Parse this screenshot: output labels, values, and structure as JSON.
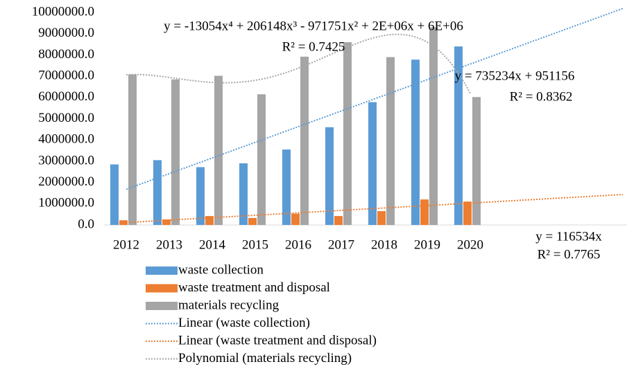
{
  "chart_data": {
    "type": "bar",
    "categories": [
      "2012",
      "2013",
      "2014",
      "2015",
      "2016",
      "2017",
      "2018",
      "2019",
      "2020"
    ],
    "series": [
      {
        "name": "waste collection",
        "color": "#5b9bd5",
        "values": [
          2850000,
          3050000,
          2720000,
          2900000,
          3550000,
          4600000,
          5780000,
          7780000,
          8400000
        ]
      },
      {
        "name": "waste treatment and disposal",
        "color": "#ed7d31",
        "values": [
          220000,
          260000,
          420000,
          330000,
          530000,
          420000,
          650000,
          1200000,
          1100000
        ]
      },
      {
        "name": "materials recycling",
        "color": "#a5a5a5",
        "values": [
          7080000,
          6850000,
          7020000,
          6150000,
          7920000,
          8600000,
          7900000,
          9300000,
          6020000
        ]
      }
    ],
    "trendlines": [
      {
        "name": "Linear (waste collection)",
        "series": 0,
        "kind": "linear",
        "color": "#5b9bd5",
        "equation": "y = 735234x + 951156",
        "r2": "R² = 0.8362"
      },
      {
        "name": "Linear (waste treatment and disposal)",
        "series": 1,
        "kind": "linear",
        "color": "#ed7d31",
        "equation": "y = 116534x",
        "r2": "R² = 0.7765"
      },
      {
        "name": "Polynomial (materials recycling)",
        "series": 2,
        "kind": "polynomial",
        "color": "#a5a5a5",
        "equation": "y = -13054x⁴ + 206148x³ - 971751x² + 2E+06x + 6E+06",
        "r2": "R² = 0.7425"
      }
    ],
    "ylim": [
      0,
      10000000
    ],
    "yticks": [
      {
        "value": 0,
        "label": "0.0"
      },
      {
        "value": 1000000,
        "label": "1000000.0"
      },
      {
        "value": 2000000,
        "label": "2000000.0"
      },
      {
        "value": 3000000,
        "label": "3000000.0"
      },
      {
        "value": 4000000,
        "label": "4000000.0"
      },
      {
        "value": 5000000,
        "label": "5000000.0"
      },
      {
        "value": 6000000,
        "label": "6000000.0"
      },
      {
        "value": 7000000,
        "label": "7000000.0"
      },
      {
        "value": 8000000,
        "label": "8000000.0"
      },
      {
        "value": 9000000,
        "label": "9000000.0"
      },
      {
        "value": 10000000,
        "label": "10000000.0"
      }
    ],
    "grid": false,
    "legend": "bottom"
  }
}
